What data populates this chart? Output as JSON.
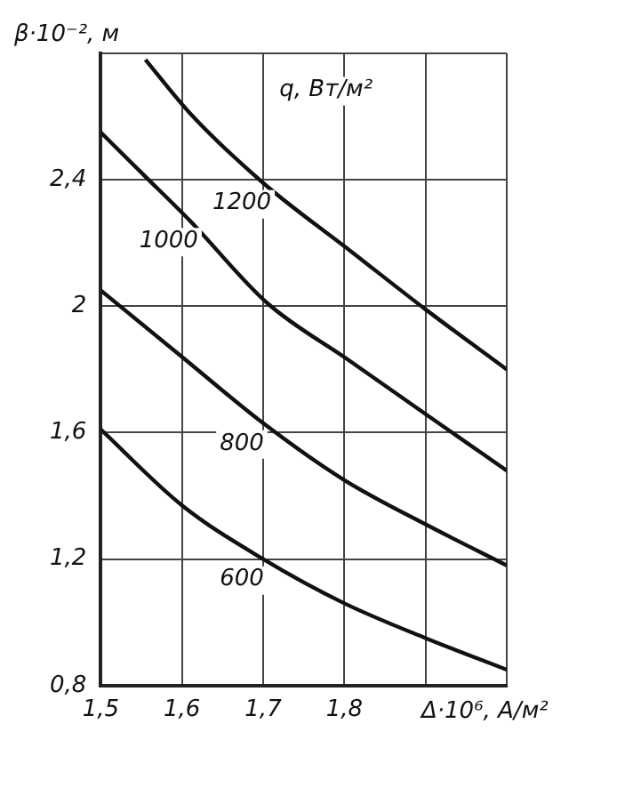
{
  "chart_data": {
    "type": "line",
    "xlabel": "Δ·10⁶, А/м²",
    "ylabel": "β·10⁻², м",
    "legend_title": "q, Вт/м²",
    "xlim": [
      1.5,
      2.0
    ],
    "xticks": [
      {
        "value": 1.5,
        "label": "1,5"
      },
      {
        "value": 1.6,
        "label": "1,6"
      },
      {
        "value": 1.7,
        "label": "1,7"
      },
      {
        "value": 1.8,
        "label": "1,8"
      },
      {
        "value": 1.9,
        "label": null
      },
      {
        "value": 2.0,
        "label": null
      }
    ],
    "ylim": [
      0.8,
      2.8
    ],
    "yticks": [
      {
        "value": 0.8,
        "label": "0,8"
      },
      {
        "value": 1.2,
        "label": "1,2"
      },
      {
        "value": 1.6,
        "label": "1,6"
      },
      {
        "value": 2.0,
        "label": "2"
      },
      {
        "value": 2.4,
        "label": "2,4"
      },
      {
        "value": 2.8,
        "label": null
      }
    ],
    "grid": true,
    "legend": false,
    "marker": "none",
    "line_style": "solid",
    "series": [
      {
        "name": "1200",
        "color": "#111111",
        "x": [
          1.555,
          1.61,
          1.7,
          1.81,
          1.9,
          2.0
        ],
        "values": [
          2.78,
          2.61,
          2.39,
          2.17,
          1.99,
          1.8
        ]
      },
      {
        "name": "1000",
        "color": "#111111",
        "x": [
          1.5,
          1.555,
          1.61,
          1.705,
          1.805,
          1.905,
          2.0
        ],
        "values": [
          2.55,
          2.41,
          2.27,
          2.01,
          1.83,
          1.65,
          1.48
        ]
      },
      {
        "name": "800",
        "color": "#111111",
        "x": [
          1.5,
          1.6,
          1.7,
          1.8,
          1.9,
          2.0
        ],
        "values": [
          2.05,
          1.84,
          1.63,
          1.45,
          1.31,
          1.18
        ]
      },
      {
        "name": "600",
        "color": "#111111",
        "x": [
          1.5,
          1.6,
          1.7,
          1.8,
          1.9,
          2.0
        ],
        "values": [
          1.61,
          1.37,
          1.2,
          1.06,
          0.95,
          0.85
        ]
      }
    ]
  }
}
